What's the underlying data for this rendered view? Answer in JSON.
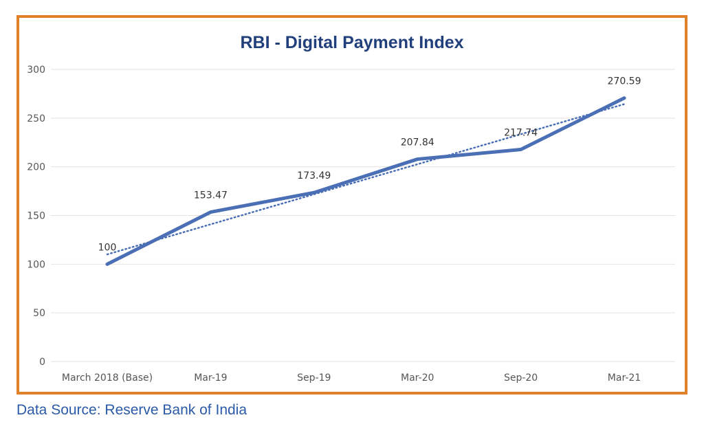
{
  "chart_data": {
    "type": "line",
    "title": "RBI - Digital Payment Index",
    "categories": [
      "March 2018 (Base)",
      "Mar-19",
      "Sep-19",
      "Mar-20",
      "Sep-20",
      "Mar-21"
    ],
    "series": [
      {
        "values": [
          100,
          153.47,
          173.49,
          207.84,
          217.74,
          270.59
        ],
        "color": "#4a6fb5"
      }
    ],
    "data_labels": [
      "100",
      "153.47",
      "173.49",
      "207.84",
      "217.74",
      "270.59"
    ],
    "trendline": {
      "type": "linear",
      "style": "dotted",
      "color": "#4a6fb5"
    },
    "yticks": [
      0,
      50,
      100,
      150,
      200,
      250,
      300
    ],
    "ylim": [
      0,
      300
    ],
    "grid": true,
    "legend": "none"
  },
  "footer": {
    "source": "Data Source: Reserve Bank of India"
  },
  "colors": {
    "frame_border": "#e0812a",
    "title": "#213f7a",
    "source_text": "#2a5aa8",
    "gridline": "#e6e2dc"
  }
}
